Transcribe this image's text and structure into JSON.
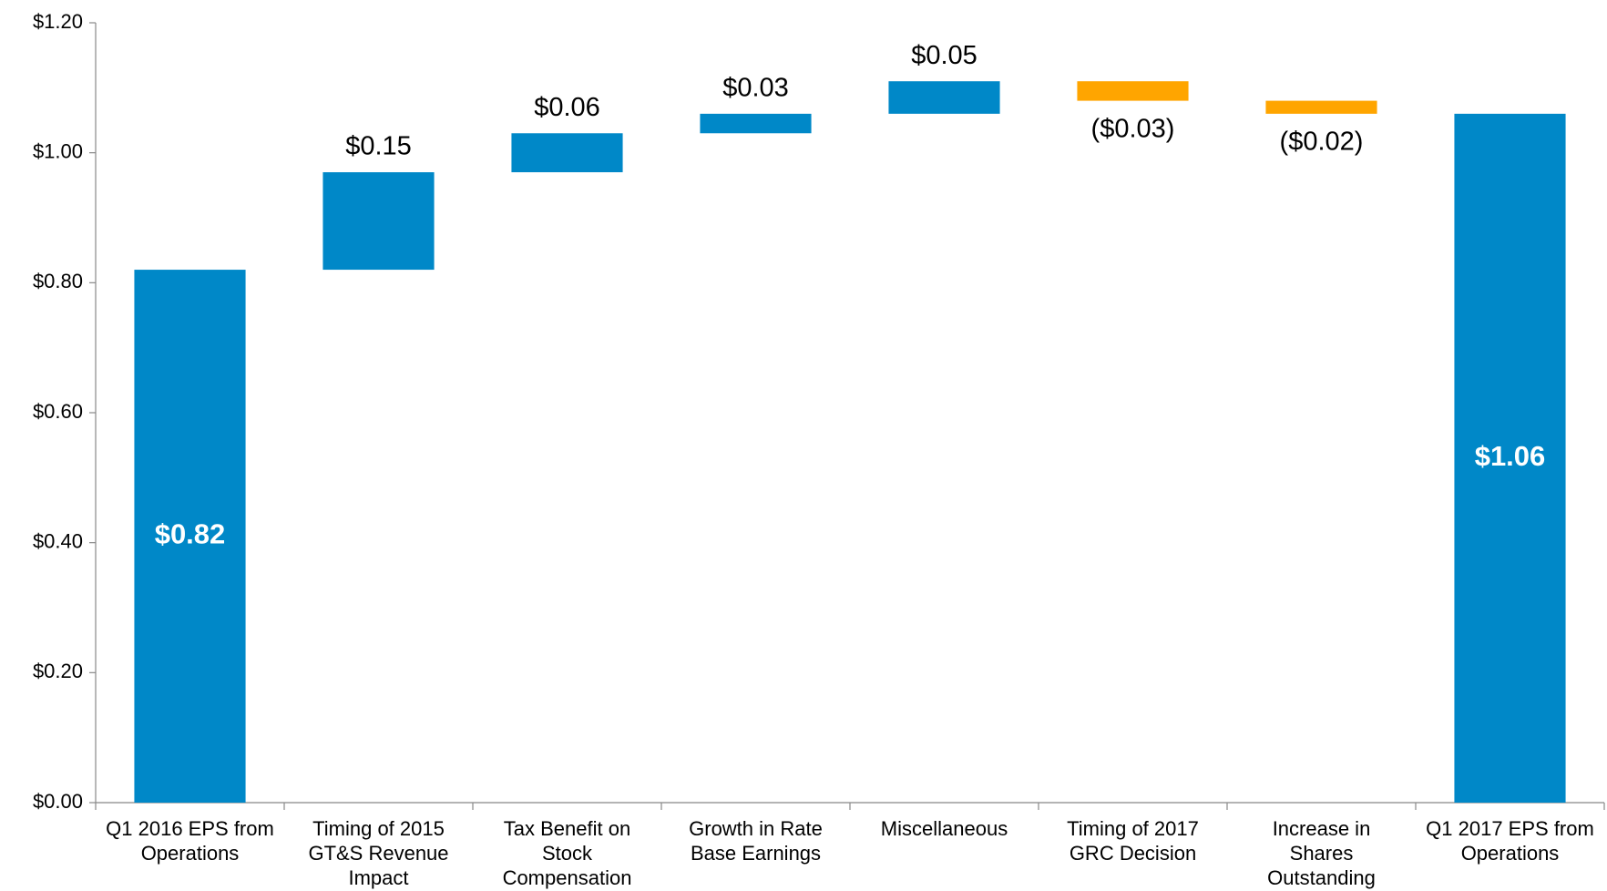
{
  "chart_data": {
    "type": "waterfall",
    "categories": [
      "Q1 2016 EPS from Operations",
      "Timing of 2015 GT&S Revenue Impact",
      "Tax Benefit on Stock Compensation",
      "Growth in Rate Base Earnings",
      "Miscellaneous",
      "Timing of 2017 GRC Decision",
      "Increase in Shares Outstanding",
      "Q1 2017 EPS from Operations"
    ],
    "values": [
      0.82,
      0.15,
      0.06,
      0.03,
      0.05,
      -0.03,
      -0.02,
      1.06
    ],
    "value_labels": [
      "$0.82",
      "$0.15",
      "$0.06",
      "$0.03",
      "$0.05",
      "($0.03)",
      "($0.02)",
      "$1.06"
    ],
    "measure": [
      "total",
      "relative",
      "relative",
      "relative",
      "relative",
      "relative",
      "relative",
      "total"
    ],
    "colors": {
      "total": "#0088c8",
      "increase": "#0088c8",
      "decrease": "#ffa500"
    },
    "ylim": [
      0,
      1.2
    ],
    "yticks": [
      {
        "value": 0,
        "label": "$0.00"
      },
      {
        "value": 0.2,
        "label": "$0.20"
      },
      {
        "value": 0.4,
        "label": "$0.40"
      },
      {
        "value": 0.6,
        "label": "$0.60"
      },
      {
        "value": 0.8,
        "label": "$0.80"
      },
      {
        "value": 1.0,
        "label": "$1.00"
      },
      {
        "value": 1.2,
        "label": "$1.20"
      }
    ],
    "grid": false
  }
}
